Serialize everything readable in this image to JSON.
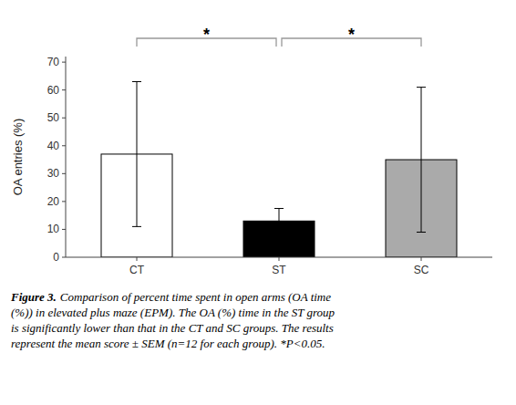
{
  "chart_data": {
    "type": "bar",
    "categories": [
      "CT",
      "ST",
      "SC"
    ],
    "values": [
      37.0,
      13.0,
      35.0
    ],
    "errors": [
      26.0,
      4.5,
      26.0
    ],
    "colors": [
      "#ffffff",
      "#000000",
      "#aaaaaa"
    ],
    "ylabel": "OA entries (%)",
    "ylim": [
      0,
      72
    ],
    "yticks": [
      0,
      10,
      20,
      30,
      40,
      50,
      60,
      70
    ],
    "grid": false,
    "annotations": [
      {
        "text": "*",
        "between": [
          "CT",
          "ST"
        ]
      },
      {
        "text": "*",
        "between": [
          "ST",
          "SC"
        ]
      }
    ],
    "caption": [
      "Figure 3.",
      "Comparison of percent time spent in open arms (OA time\n(%)) in elevated plus maze (EPM). The OA (%) time in the ST group\nis significantly lower than that in the CT and SC groups. The results\nrepresent the mean score ± SEM (n=12 for each group). *P<0.05."
    ]
  }
}
